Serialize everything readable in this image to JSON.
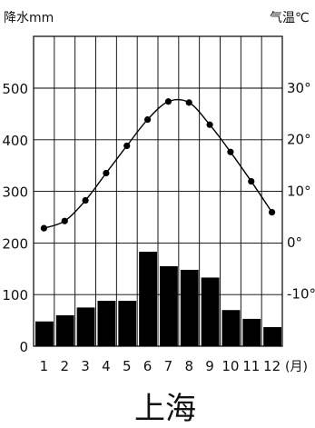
{
  "chart_data": {
    "type": "bar",
    "title": "上海",
    "precip_label": "降水mm",
    "temp_label": "气温℃",
    "month_unit": "(月)",
    "categories": [
      "1",
      "2",
      "3",
      "4",
      "5",
      "6",
      "7",
      "8",
      "9",
      "10",
      "11",
      "12"
    ],
    "precip_ylim": [
      0,
      500
    ],
    "precip_ticks": [
      "0",
      "100",
      "200",
      "300",
      "400",
      "500"
    ],
    "temp_ylim": [
      -20,
      30
    ],
    "temp_ticks": [
      "30°",
      "20°",
      "10°",
      "0°",
      "-10°"
    ],
    "series": [
      {
        "name": "降水",
        "type": "bar",
        "axis": "left",
        "values": [
          48,
          60,
          75,
          88,
          88,
          183,
          155,
          148,
          133,
          70,
          53,
          37
        ]
      },
      {
        "name": "气温",
        "type": "line",
        "axis": "right",
        "values": [
          2.8,
          4.2,
          8.2,
          13.5,
          18.8,
          23.9,
          27.4,
          27.2,
          22.9,
          17.6,
          11.9,
          5.9
        ]
      }
    ],
    "grid": true,
    "colors": {
      "bar": "#000000",
      "line": "#000000",
      "grid": "#000000"
    }
  }
}
